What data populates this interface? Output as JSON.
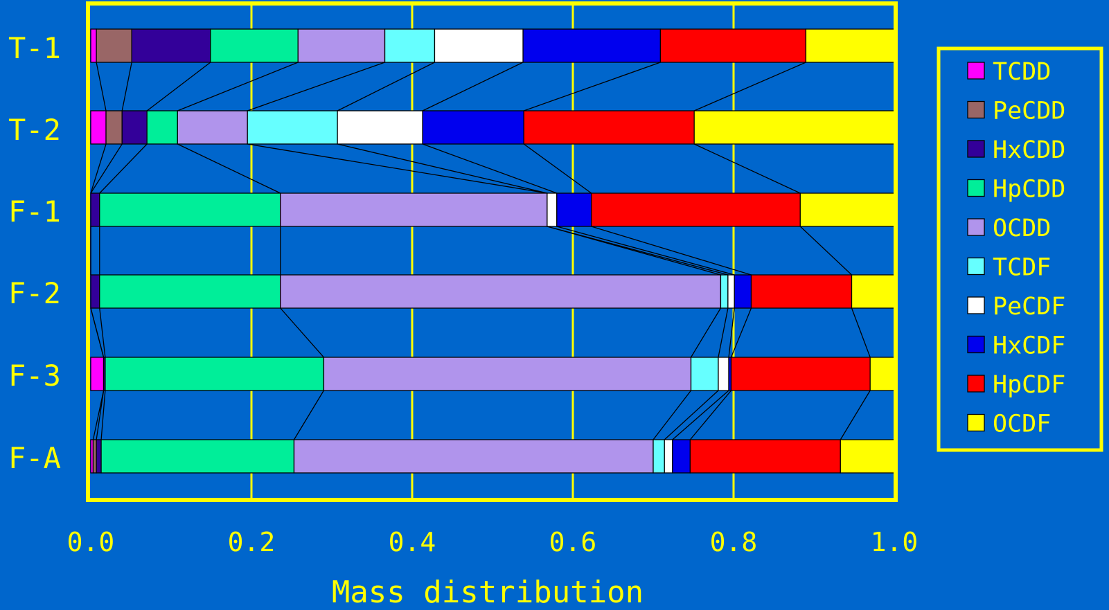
{
  "chart_data": {
    "type": "bar",
    "stacked": true,
    "orientation": "horizontal",
    "categories": [
      "T-1",
      "T-2",
      "F-1",
      "F-2",
      "F-3",
      "F-A"
    ],
    "xlabel": "Mass distribution",
    "xlim": [
      0,
      1
    ],
    "xticks": [
      "0.0",
      "0.2",
      "0.4",
      "0.6",
      "0.8",
      "1.0"
    ],
    "grid": true,
    "legend_position": "right",
    "connector_lines": true,
    "series": [
      {
        "name": "TCDD",
        "color": "#FF00FF",
        "values": [
          0.007,
          0.019,
          0.0,
          0.0,
          0.016,
          0.003
        ]
      },
      {
        "name": "PeCDD",
        "color": "#996666",
        "values": [
          0.044,
          0.02,
          0.0,
          0.0,
          0.0,
          0.004
        ]
      },
      {
        "name": "HxCDD",
        "color": "#330099",
        "values": [
          0.098,
          0.031,
          0.011,
          0.011,
          0.002,
          0.006
        ]
      },
      {
        "name": "HpCDD",
        "color": "#00EE99",
        "values": [
          0.109,
          0.038,
          0.225,
          0.225,
          0.272,
          0.24
        ]
      },
      {
        "name": "OCDD",
        "color": "#B094EC",
        "values": [
          0.108,
          0.087,
          0.332,
          0.548,
          0.457,
          0.447
        ]
      },
      {
        "name": "TCDF",
        "color": "#66FFFF",
        "values": [
          0.062,
          0.112,
          0.0,
          0.009,
          0.034,
          0.014
        ]
      },
      {
        "name": "PeCDF",
        "color": "#FFFFFF",
        "values": [
          0.11,
          0.106,
          0.012,
          0.008,
          0.013,
          0.01
        ]
      },
      {
        "name": "HxCDF",
        "color": "#0000EE",
        "values": [
          0.171,
          0.126,
          0.043,
          0.021,
          0.003,
          0.022
        ]
      },
      {
        "name": "HpCDF",
        "color": "#FF0000",
        "values": [
          0.181,
          0.212,
          0.26,
          0.125,
          0.173,
          0.187
        ]
      },
      {
        "name": "OCDF",
        "color": "#FFFF00",
        "values": [
          0.11,
          0.249,
          0.117,
          0.053,
          0.03,
          0.067
        ]
      }
    ]
  }
}
